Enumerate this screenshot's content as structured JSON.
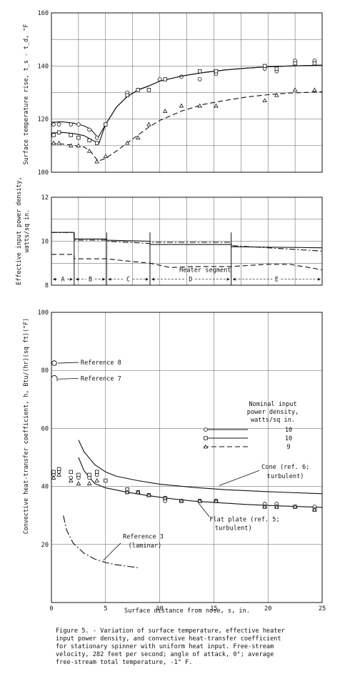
{
  "chart_data": [
    {
      "type": "scatter",
      "ylabel": "Surface temperature rise, t_s - t_d, °F",
      "ylim": [
        100,
        160
      ],
      "yticks": [
        100,
        120,
        140,
        160
      ],
      "xlim": [
        0,
        25
      ],
      "grid": true,
      "series": [
        {
          "marker": "circle",
          "points": [
            [
              0.2,
              118
            ],
            [
              0.7,
              118
            ],
            [
              1.8,
              118
            ],
            [
              2.5,
              118
            ],
            [
              3.5,
              116
            ],
            [
              4.2,
              113
            ],
            [
              7,
              130
            ],
            [
              10,
              135
            ],
            [
              12,
              136
            ],
            [
              13.7,
              135
            ],
            [
              15.2,
              137
            ],
            [
              19.7,
              139
            ],
            [
              20.8,
              138
            ],
            [
              22.5,
              142
            ],
            [
              24.3,
              142
            ]
          ],
          "curve": [
            [
              0,
              118.8
            ],
            [
              1,
              119
            ],
            [
              2,
              118.5
            ],
            [
              3,
              117.5
            ],
            [
              3.6,
              116.3
            ],
            [
              4.3,
              113
            ],
            [
              5,
              118
            ],
            [
              6,
              124.5
            ],
            [
              7,
              128.5
            ],
            [
              8,
              131
            ],
            [
              9,
              132.5
            ],
            [
              10,
              134.3
            ],
            [
              12,
              136.2
            ],
            [
              14,
              137.5
            ],
            [
              16,
              138.5
            ],
            [
              18,
              139.2
            ],
            [
              20,
              139.7
            ],
            [
              22,
              140
            ],
            [
              25,
              140.3
            ]
          ]
        },
        {
          "marker": "square",
          "points": [
            [
              0.2,
              114
            ],
            [
              0.7,
              115
            ],
            [
              1.8,
              114
            ],
            [
              2.5,
              113
            ],
            [
              3.5,
              112
            ],
            [
              4.2,
              111
            ],
            [
              5,
              118
            ],
            [
              7,
              129
            ],
            [
              8,
              131
            ],
            [
              9,
              131
            ],
            [
              10.5,
              135
            ],
            [
              13.7,
              138
            ],
            [
              15.2,
              138
            ],
            [
              19.7,
              140
            ],
            [
              20.8,
              139
            ],
            [
              22.5,
              141
            ],
            [
              24.3,
              141
            ]
          ],
          "curve": [
            [
              0,
              114.8
            ],
            [
              1,
              115
            ],
            [
              2,
              114.6
            ],
            [
              3,
              113.8
            ],
            [
              3.9,
              111.8
            ],
            [
              4.4,
              111
            ],
            [
              5,
              118
            ],
            [
              6,
              124.5
            ],
            [
              7,
              128.5
            ],
            [
              8,
              131
            ],
            [
              9,
              132.5
            ],
            [
              10,
              134.3
            ],
            [
              12,
              136.2
            ],
            [
              14,
              137.5
            ],
            [
              16,
              138.5
            ],
            [
              18,
              139.2
            ],
            [
              20,
              139.7
            ],
            [
              22,
              140
            ],
            [
              25,
              140.3
            ]
          ]
        },
        {
          "marker": "triangle",
          "points": [
            [
              0.2,
              111
            ],
            [
              0.7,
              111
            ],
            [
              1.8,
              110
            ],
            [
              2.5,
              110
            ],
            [
              3.5,
              108
            ],
            [
              4.2,
              104
            ],
            [
              5,
              106
            ],
            [
              7,
              111
            ],
            [
              8,
              113
            ],
            [
              9,
              118
            ],
            [
              10.5,
              123
            ],
            [
              12,
              125
            ],
            [
              13.7,
              125
            ],
            [
              15.2,
              125
            ],
            [
              19.7,
              127
            ],
            [
              20.8,
              129
            ],
            [
              22.5,
              131
            ],
            [
              24.3,
              131
            ]
          ],
          "curve": [
            [
              0,
              110.8
            ],
            [
              1,
              110.6
            ],
            [
              2,
              110.2
            ],
            [
              3,
              109.5
            ],
            [
              3.6,
              108
            ],
            [
              4.3,
              104.2
            ],
            [
              5,
              105.2
            ],
            [
              6,
              108
            ],
            [
              7,
              111
            ],
            [
              8,
              114
            ],
            [
              9,
              117
            ],
            [
              10,
              119.5
            ],
            [
              12,
              123
            ],
            [
              14,
              125.5
            ],
            [
              16,
              127
            ],
            [
              18,
              128.3
            ],
            [
              20,
              129.2
            ],
            [
              22,
              129.8
            ],
            [
              25,
              130.3
            ]
          ]
        }
      ]
    },
    {
      "type": "line",
      "ylabel": "Effective input power density, watts/sq in.",
      "ylim": [
        8,
        12
      ],
      "yticks": [
        8,
        10,
        12
      ],
      "xlim": [
        0,
        25
      ],
      "segments": [
        "A",
        "B",
        "C",
        "D",
        "E"
      ],
      "segment_bounds": [
        0,
        2.1,
        5.1,
        9.1,
        16.6,
        25
      ],
      "annotation": "Heater segment",
      "series": [
        {
          "style": "solid",
          "levels": [
            10.4,
            10.1,
            10.05,
            9.85,
            9.75
          ],
          "segment_ends": [
            10.4,
            10.1,
            10.0,
            9.85,
            9.7
          ]
        },
        {
          "style": "dashdot",
          "levels": [
            10.4,
            10.05,
            10.0,
            9.95,
            9.8
          ],
          "segment_ends": [
            10.4,
            10.05,
            9.9,
            9.95,
            9.55
          ]
        },
        {
          "style": "dashed",
          "points": [
            [
              0,
              9.4
            ],
            [
              2.1,
              9.4
            ],
            [
              2.1,
              9.2
            ],
            [
              5.1,
              9.2
            ],
            [
              7,
              9.1
            ],
            [
              9.1,
              9.0
            ],
            [
              11,
              8.8
            ],
            [
              13,
              8.85
            ],
            [
              16.6,
              8.85
            ],
            [
              20,
              8.95
            ],
            [
              22,
              8.95
            ],
            [
              25,
              8.7
            ]
          ]
        }
      ]
    },
    {
      "type": "line",
      "ylabel": "Convective heat-transfer coefficient, h, Btu/(hr)(sq ft)(°F)",
      "xlabel": "Surface distance from nose, s, in.",
      "ylim": [
        0,
        100
      ],
      "yticks": [
        20,
        40,
        60,
        80,
        100
      ],
      "xlim": [
        0,
        25
      ],
      "xticks": [
        0,
        5,
        10,
        15,
        20,
        25
      ],
      "legend_title": [
        "Nominal input",
        "power density,",
        "watts/sq in."
      ],
      "legend_values": [
        "10",
        "10",
        "9"
      ],
      "labels": [
        "Reference 8",
        "Reference 7",
        "Cone (ref. 6;",
        "turbulent)",
        "Flat plate (ref. 5;",
        "turbulent)",
        "Reference 3",
        "(laminar)"
      ],
      "reference_points": {
        "reference_8": 82.5,
        "reference_7": 77
      },
      "cone_curve": [
        [
          2.5,
          56
        ],
        [
          3,
          52
        ],
        [
          4,
          47.5
        ],
        [
          5,
          45
        ],
        [
          6,
          43.5
        ],
        [
          8,
          42
        ],
        [
          10,
          40.8
        ],
        [
          13,
          39.7
        ],
        [
          16,
          38.9
        ],
        [
          20,
          38.2
        ],
        [
          25,
          37.5
        ]
      ],
      "flat_plate_curve": [
        [
          2.5,
          50
        ],
        [
          3,
          45.5
        ],
        [
          4,
          41
        ],
        [
          5,
          39.5
        ],
        [
          7,
          38
        ],
        [
          9,
          36.8
        ],
        [
          11,
          35.8
        ],
        [
          13,
          35
        ],
        [
          15,
          34.5
        ],
        [
          18,
          33.8
        ],
        [
          21,
          33.3
        ],
        [
          25,
          32.8
        ]
      ],
      "laminar_curve": [
        [
          1.1,
          30
        ],
        [
          1.4,
          25
        ],
        [
          2,
          20.5
        ],
        [
          3,
          17
        ],
        [
          4,
          15
        ],
        [
          5,
          13.8
        ],
        [
          6,
          13
        ],
        [
          8,
          12
        ]
      ],
      "series": [
        {
          "marker": "circle",
          "points": [
            [
              0.2,
              44
            ],
            [
              0.7,
              45
            ],
            [
              1.8,
              43
            ],
            [
              2.5,
              43
            ],
            [
              3.5,
              43
            ],
            [
              4.2,
              44
            ],
            [
              7,
              38
            ],
            [
              8,
              38
            ],
            [
              9,
              37
            ],
            [
              10.5,
              35
            ],
            [
              12,
              35
            ],
            [
              13.7,
              35
            ],
            [
              15.2,
              35
            ],
            [
              19.7,
              34
            ],
            [
              20.8,
              34
            ],
            [
              22.5,
              33
            ],
            [
              24.3,
              33
            ]
          ]
        },
        {
          "marker": "square",
          "points": [
            [
              0.2,
              45
            ],
            [
              0.7,
              46
            ],
            [
              1.8,
              45
            ],
            [
              2.5,
              44
            ],
            [
              3.5,
              44
            ],
            [
              4.2,
              45
            ],
            [
              5,
              42
            ],
            [
              7,
              39
            ],
            [
              8,
              38
            ],
            [
              9,
              37
            ],
            [
              10.5,
              36
            ],
            [
              12,
              35
            ],
            [
              13.7,
              35
            ],
            [
              15.2,
              35
            ],
            [
              19.7,
              33
            ],
            [
              20.8,
              33
            ],
            [
              22.5,
              33
            ],
            [
              24.3,
              32
            ]
          ]
        },
        {
          "marker": "triangle",
          "points": [
            [
              0.2,
              43
            ],
            [
              0.7,
              44
            ],
            [
              1.8,
              42
            ],
            [
              2.5,
              41
            ],
            [
              3.5,
              41
            ],
            [
              4.2,
              42
            ],
            [
              7,
              38
            ],
            [
              8,
              38
            ],
            [
              9,
              37
            ],
            [
              10.5,
              36
            ],
            [
              12,
              35
            ],
            [
              13.7,
              35
            ],
            [
              15.2,
              35
            ],
            [
              19.7,
              33
            ],
            [
              20.8,
              33
            ],
            [
              22.5,
              33
            ],
            [
              24.3,
              32
            ]
          ]
        }
      ]
    }
  ],
  "caption": [
    "Figure 5. - Variation of surface temperature, effective heater",
    "input power density, and convective heat-transfer coefficient",
    "for stationary spinner with uniform heat input.  Free-stream",
    "velocity, 282 feet per second; angle of attack, 0°; average",
    "free-stream total temperature, -1° F."
  ]
}
